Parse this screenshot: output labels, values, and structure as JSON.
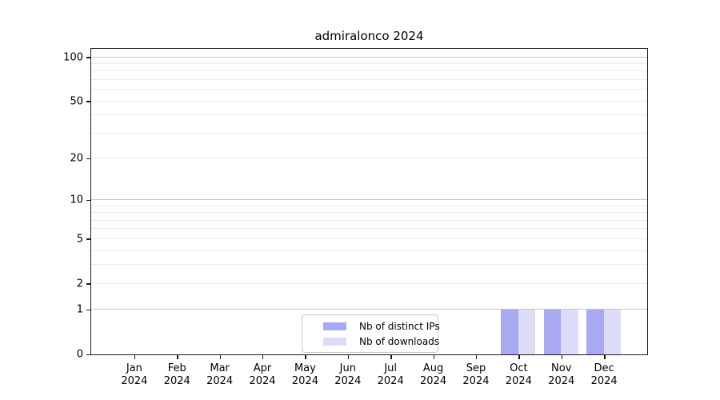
{
  "title": "admiralonco 2024",
  "chart_data": {
    "type": "bar",
    "title": "admiralonco 2024",
    "year_label": "2024",
    "months": [
      "Jan",
      "Feb",
      "Mar",
      "Apr",
      "May",
      "Jun",
      "Jul",
      "Aug",
      "Sep",
      "Oct",
      "Nov",
      "Dec"
    ],
    "categories": [
      "Jan 2024",
      "Feb 2024",
      "Mar 2024",
      "Apr 2024",
      "May 2024",
      "Jun 2024",
      "Jul 2024",
      "Aug 2024",
      "Sep 2024",
      "Oct 2024",
      "Nov 2024",
      "Dec 2024"
    ],
    "series": [
      {
        "name": "Nb of distinct IPs",
        "color": "#a9a9f2",
        "values": [
          0,
          0,
          0,
          0,
          0,
          0,
          0,
          0,
          0,
          1,
          1,
          1
        ]
      },
      {
        "name": "Nb of downloads",
        "color": "#dcdcf9",
        "values": [
          0,
          0,
          0,
          0,
          0,
          0,
          0,
          0,
          0,
          1,
          1,
          1
        ]
      }
    ],
    "xlabel": "",
    "ylabel": "",
    "yscale": "log1p",
    "ylim": [
      0,
      113
    ],
    "yticks": [
      0,
      1,
      2,
      5,
      10,
      20,
      50,
      100
    ],
    "major_gridlines": [
      1,
      10,
      100
    ],
    "minor_gridlines": [
      2,
      3,
      4,
      5,
      6,
      7,
      8,
      9,
      20,
      30,
      40,
      50,
      60,
      70,
      80,
      90
    ],
    "grid": true,
    "legend_position": "bottom-center"
  },
  "colors": {
    "background": "#ffffff",
    "spine": "#1a1a1a",
    "major_grid": "#c6c6c6",
    "minor_grid": "#ededed",
    "bar_distinct_ips": "#a9a9f2",
    "bar_downloads": "#dcdcf9",
    "legend_border": "#c9c9c9",
    "text": "#000000"
  }
}
